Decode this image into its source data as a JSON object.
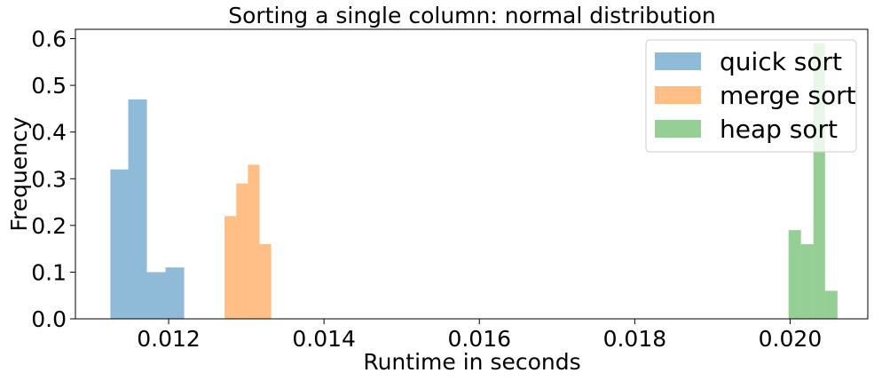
{
  "chart_data": {
    "type": "bar",
    "subtype": "histogram",
    "title": "Sorting a single column: normal distribution",
    "xlabel": "Runtime in seconds",
    "ylabel": "Frequency",
    "xlim": [
      0.0108,
      0.021
    ],
    "ylim": [
      0,
      0.62
    ],
    "xticks": [
      0.012,
      0.014,
      0.016,
      0.018,
      0.02
    ],
    "xtick_labels": [
      "0.012",
      "0.014",
      "0.016",
      "0.018",
      "0.020"
    ],
    "yticks": [
      0.0,
      0.1,
      0.2,
      0.3,
      0.4,
      0.5,
      0.6
    ],
    "ytick_labels": [
      "0.0",
      "0.1",
      "0.2",
      "0.3",
      "0.4",
      "0.5",
      "0.6"
    ],
    "grid": false,
    "legend_position": "top-right",
    "series": [
      {
        "name": "quick sort",
        "color": "#1f77b4",
        "bins": [
          {
            "x0": 0.01125,
            "x1": 0.01148,
            "value": 0.32
          },
          {
            "x0": 0.01148,
            "x1": 0.01172,
            "value": 0.47
          },
          {
            "x0": 0.01172,
            "x1": 0.01196,
            "value": 0.1
          },
          {
            "x0": 0.01196,
            "x1": 0.0122,
            "value": 0.11
          }
        ]
      },
      {
        "name": "merge sort",
        "color": "#ff7f0e",
        "bins": [
          {
            "x0": 0.01272,
            "x1": 0.01287,
            "value": 0.22
          },
          {
            "x0": 0.01287,
            "x1": 0.01302,
            "value": 0.29
          },
          {
            "x0": 0.01302,
            "x1": 0.01317,
            "value": 0.33
          },
          {
            "x0": 0.01317,
            "x1": 0.01332,
            "value": 0.16
          }
        ]
      },
      {
        "name": "heap sort",
        "color": "#2ca02c",
        "bins": [
          {
            "x0": 0.01998,
            "x1": 0.02014,
            "value": 0.19
          },
          {
            "x0": 0.02014,
            "x1": 0.0203,
            "value": 0.16
          },
          {
            "x0": 0.0203,
            "x1": 0.02045,
            "value": 0.59
          },
          {
            "x0": 0.02045,
            "x1": 0.02061,
            "value": 0.06
          }
        ]
      }
    ]
  }
}
